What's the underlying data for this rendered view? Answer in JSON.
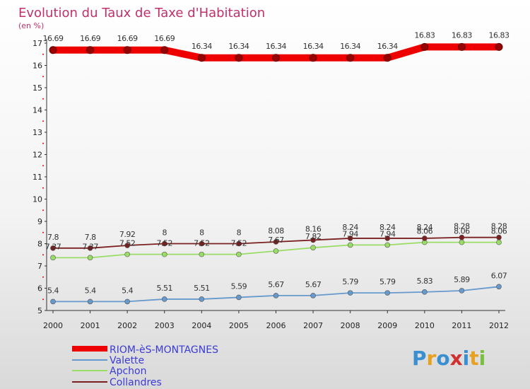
{
  "chart_data": {
    "type": "line",
    "title": "Evolution du Taux de Taxe d'Habitation",
    "unit_label": "(en %)",
    "x": [
      "2000",
      "2001",
      "2002",
      "2003",
      "2004",
      "2005",
      "2006",
      "2007",
      "2008",
      "2009",
      "2010",
      "2011",
      "2012"
    ],
    "ylim": [
      5,
      17
    ],
    "y_ticks": [
      "5",
      "6",
      "7",
      "8",
      "9",
      "10",
      "11",
      "12",
      "13",
      "14",
      "15",
      "16",
      "17"
    ],
    "grid": false,
    "legend_position": "bottom-left",
    "series": [
      {
        "name": "RIOM-èS-MONTAGNES",
        "color": "#ee0000",
        "values": [
          16.69,
          16.69,
          16.69,
          16.69,
          16.34,
          16.34,
          16.34,
          16.34,
          16.34,
          16.34,
          16.83,
          16.83,
          16.83
        ],
        "labels": [
          "16.69",
          "16.69",
          "16.69",
          "16.69",
          "16.34",
          "16.34",
          "16.34",
          "16.34",
          "16.34",
          "16.34",
          "16.83",
          "16.83",
          "16.83"
        ]
      },
      {
        "name": "Valette",
        "color": "#6699cc",
        "values": [
          5.4,
          5.4,
          5.4,
          5.51,
          5.51,
          5.59,
          5.67,
          5.67,
          5.79,
          5.79,
          5.83,
          5.89,
          6.07
        ],
        "labels": [
          "5.4",
          "5.4",
          "5.4",
          "5.51",
          "5.51",
          "5.59",
          "5.67",
          "5.67",
          "5.79",
          "5.79",
          "5.83",
          "5.89",
          "6.07"
        ]
      },
      {
        "name": "Apchon",
        "color": "#99dd66",
        "values": [
          7.37,
          7.37,
          7.52,
          7.52,
          7.52,
          7.52,
          7.67,
          7.82,
          7.94,
          7.94,
          8.06,
          8.06,
          8.06
        ],
        "labels": [
          "7.37",
          "7.37",
          "7.52",
          "7.52",
          "7.52",
          "7.52",
          "7.67",
          "7.82",
          "7.94",
          "7.94",
          "8.06",
          "8.06",
          "8.06"
        ]
      },
      {
        "name": "Collandres",
        "color": "#7a2020",
        "values": [
          7.8,
          7.8,
          7.92,
          8,
          8,
          8,
          8.08,
          8.16,
          8.24,
          8.24,
          8.24,
          8.28,
          8.28
        ],
        "labels": [
          "7.8",
          "7.8",
          "7.92",
          "8",
          "8",
          "8",
          "8.08",
          "8.16",
          "8.24",
          "8.24",
          "8.24",
          "8.28",
          "8.28"
        ]
      }
    ]
  },
  "brand": {
    "letters": [
      "P",
      "r",
      "o",
      "x",
      "i",
      "t",
      "i"
    ],
    "colors": [
      "#3a8fd0",
      "#e8a020",
      "#3a8fd0",
      "#d03030",
      "#3a8fd0",
      "#e8a020",
      "#7ac040"
    ]
  }
}
